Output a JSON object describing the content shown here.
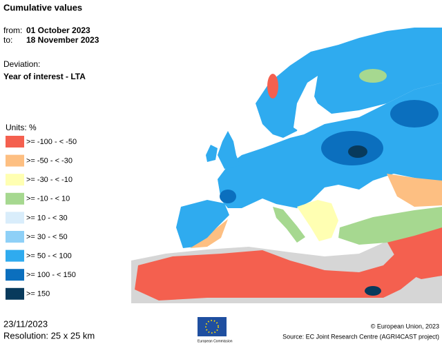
{
  "header": {
    "title": "Cumulative values",
    "from_label": "from:",
    "from_date": "01 October 2023",
    "to_label": "to:",
    "to_date": "18 November 2023",
    "deviation_label": "Deviation:",
    "deviation_value": "Year of interest - LTA"
  },
  "legend": {
    "title": "Units: %",
    "items": [
      {
        "label": ">= -100 - < -50",
        "color": "#f4604f"
      },
      {
        "label": ">= -50 - < -30",
        "color": "#fdbf82"
      },
      {
        "label": ">= -30 - < -10",
        "color": "#ffffb2"
      },
      {
        "label": ">= -10 - < 10",
        "color": "#a6d890"
      },
      {
        "label": ">= 10 - < 30",
        "color": "#d9edfb"
      },
      {
        "label": ">= 30 - < 50",
        "color": "#8ed0f7"
      },
      {
        "label": ">= 50 - < 100",
        "color": "#2fabef"
      },
      {
        "label": ">= 100 - < 150",
        "color": "#0b6fbe"
      },
      {
        "label": ">= 150",
        "color": "#083a5c"
      }
    ]
  },
  "footer": {
    "date": "23/11/2023",
    "resolution": "Resolution: 25 x 25 km",
    "logo_text": "European Commission",
    "copyright": "© European Union, 2023",
    "source": "Source: EC Joint Research Centre (AGRI4CAST project)"
  }
}
